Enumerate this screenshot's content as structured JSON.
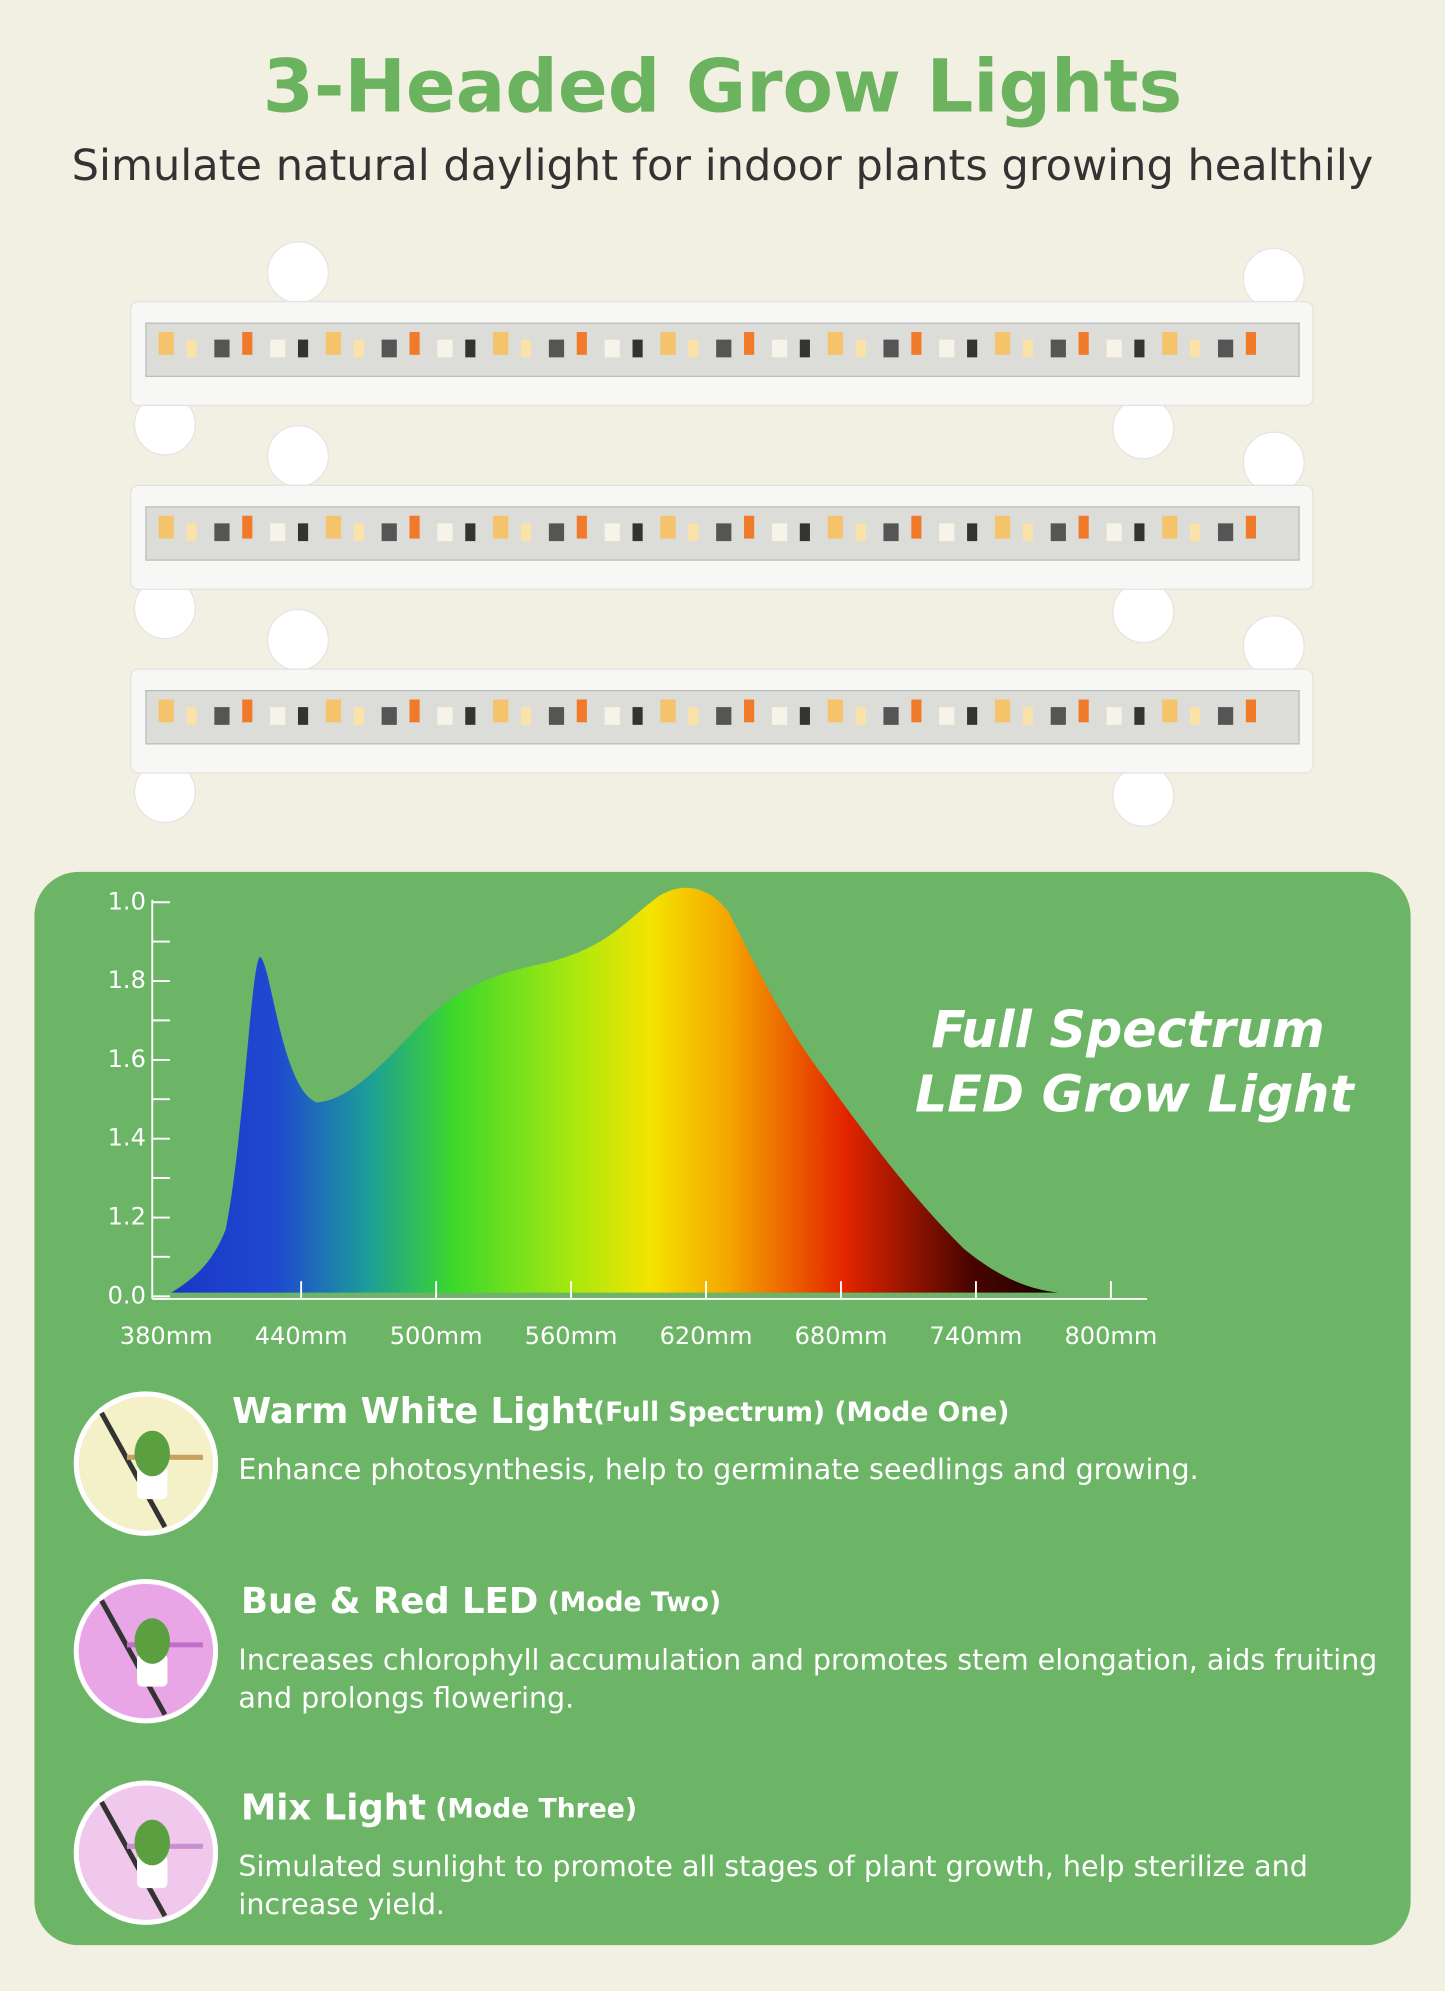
{
  "header": {
    "title": "3-Headed Grow Lights",
    "subtitle": "Simulate natural daylight for indoor plants growing healthily"
  },
  "spectrum": {
    "heading": [
      "Full Spectrum",
      "LED Grow Light"
    ],
    "y_labels": [
      "1.0",
      "1.8",
      "1.6",
      "1.4",
      "1.2",
      "0.0"
    ],
    "x_labels": [
      "380mm",
      "440mm",
      "500mm",
      "560mm",
      "620mm",
      "680mm",
      "740mm",
      "800mm"
    ]
  },
  "modes": [
    {
      "title": "Warm White Light",
      "suffix": "(Full Spectrum) (Mode One)",
      "lines": [
        "Enhance photosynthesis, help to germinate seedlings and growing."
      ]
    },
    {
      "title": "Bue & Red LED",
      "suffix": " (Mode Two)",
      "lines": [
        "Increases chlorophyll accumulation and promotes stem elongation, aids fruiting",
        "and prolongs flowering."
      ]
    },
    {
      "title": "Mix Light",
      "suffix": " (Mode Three)",
      "lines": [
        "Simulated sunlight to promote all stages of plant growth, help sterilize and",
        "increase yield."
      ]
    }
  ]
}
